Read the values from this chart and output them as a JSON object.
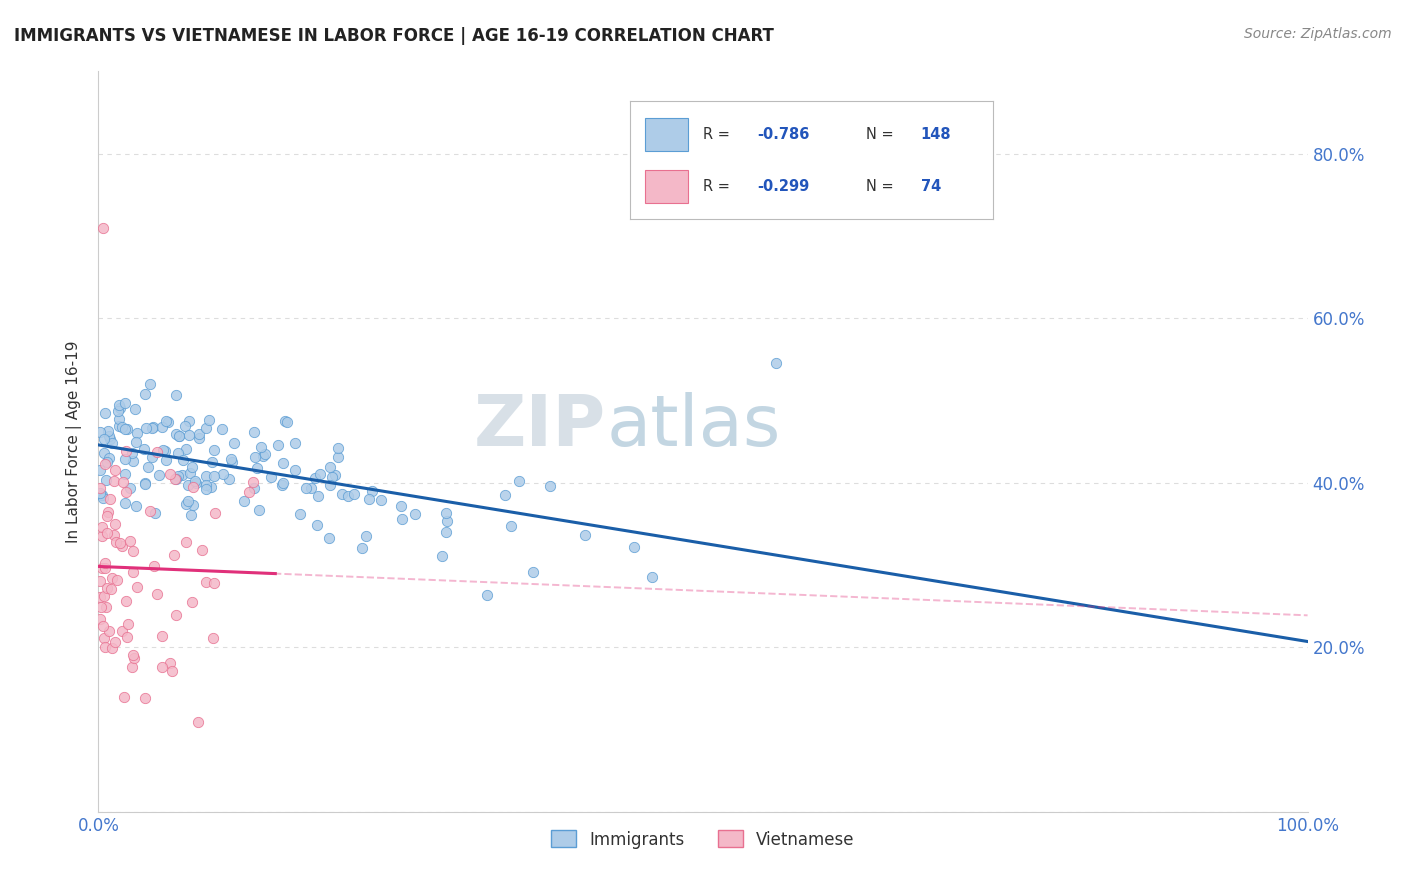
{
  "title": "IMMIGRANTS VS VIETNAMESE IN LABOR FORCE | AGE 16-19 CORRELATION CHART",
  "source": "Source: ZipAtlas.com",
  "ylabel": "In Labor Force | Age 16-19",
  "xlim": [
    0.0,
    1.0
  ],
  "ylim": [
    0.0,
    0.9
  ],
  "immigrants_R": "-0.786",
  "immigrants_N": "148",
  "vietnamese_R": "-0.299",
  "vietnamese_N": "74",
  "immigrants_color": "#aecce8",
  "immigrants_edge": "#5b9dd4",
  "vietnamese_color": "#f4b8c8",
  "vietnamese_edge": "#e87090",
  "immigrants_line_color": "#1a5ea8",
  "vietnamese_line_color": "#e0307a",
  "legend_text_color": "#2255bb",
  "background_color": "#ffffff",
  "title_color": "#222222",
  "axis_color": "#cccccc",
  "grid_color": "#dddddd",
  "tick_color": "#4477cc",
  "watermark_zip_color": "#c8d8e8",
  "watermark_atlas_color": "#9bbbd4"
}
